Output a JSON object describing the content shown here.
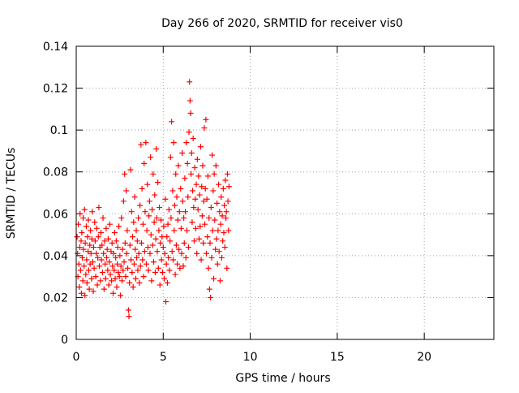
{
  "chart_data": {
    "type": "scatter",
    "title": "Day 266 of 2020, SRMTID for receiver vis0",
    "xlabel": "GPS time / hours",
    "ylabel": "SRMTID / TECUs",
    "xlim": [
      0,
      24
    ],
    "ylim": [
      0,
      0.14
    ],
    "xticks": [
      0,
      5,
      10,
      15,
      20
    ],
    "xtick_labels": [
      "0",
      "5",
      "10",
      "15",
      "20"
    ],
    "yticks": [
      0,
      0.02,
      0.04,
      0.06,
      0.08,
      0.1,
      0.12,
      0.14
    ],
    "ytick_labels": [
      "0",
      "0.02",
      "0.04",
      "0.06",
      "0.08",
      "0.1",
      "0.12",
      "0.14"
    ],
    "grid": true,
    "marker": "+",
    "series": [
      {
        "color": "#ff0000",
        "points": [
          [
            0.05,
            0.049
          ],
          [
            0.08,
            0.041
          ],
          [
            0.1,
            0.03
          ],
          [
            0.12,
            0.055
          ],
          [
            0.15,
            0.036
          ],
          [
            0.18,
            0.025
          ],
          [
            0.2,
            0.044
          ],
          [
            0.22,
            0.06
          ],
          [
            0.25,
            0.033
          ],
          [
            0.28,
            0.047
          ],
          [
            0.3,
            0.022
          ],
          [
            0.32,
            0.051
          ],
          [
            0.35,
            0.039
          ],
          [
            0.38,
            0.028
          ],
          [
            0.4,
            0.058
          ],
          [
            0.42,
            0.043
          ],
          [
            0.45,
            0.035
          ],
          [
            0.48,
            0.062
          ],
          [
            0.5,
            0.021
          ],
          [
            0.52,
            0.046
          ],
          [
            0.55,
            0.031
          ],
          [
            0.58,
            0.054
          ],
          [
            0.6,
            0.038
          ],
          [
            0.62,
            0.027
          ],
          [
            0.65,
            0.049
          ],
          [
            0.68,
            0.042
          ],
          [
            0.7,
            0.057
          ],
          [
            0.72,
            0.033
          ],
          [
            0.75,
            0.024
          ],
          [
            0.78,
            0.045
          ],
          [
            0.8,
            0.036
          ],
          [
            0.82,
            0.052
          ],
          [
            0.85,
            0.041
          ],
          [
            0.88,
            0.029
          ],
          [
            0.9,
            0.048
          ],
          [
            0.92,
            0.061
          ],
          [
            0.95,
            0.037
          ],
          [
            0.98,
            0.023
          ],
          [
            1.0,
            0.044
          ],
          [
            1.03,
            0.034
          ],
          [
            1.06,
            0.056
          ],
          [
            1.09,
            0.047
          ],
          [
            1.12,
            0.03
          ],
          [
            1.15,
            0.041
          ],
          [
            1.18,
            0.053
          ],
          [
            1.21,
            0.026
          ],
          [
            1.24,
            0.039
          ],
          [
            1.27,
            0.049
          ],
          [
            1.3,
            0.063
          ],
          [
            1.33,
            0.035
          ],
          [
            1.36,
            0.044
          ],
          [
            1.39,
            0.028
          ],
          [
            1.42,
            0.051
          ],
          [
            1.45,
            0.038
          ],
          [
            1.48,
            0.045
          ],
          [
            1.51,
            0.032
          ],
          [
            1.54,
            0.058
          ],
          [
            1.57,
            0.041
          ],
          [
            1.6,
            0.024
          ],
          [
            1.63,
            0.047
          ],
          [
            1.66,
            0.036
          ],
          [
            1.69,
            0.029
          ],
          [
            1.72,
            0.053
          ],
          [
            1.75,
            0.039
          ],
          [
            1.78,
            0.043
          ],
          [
            1.81,
            0.033
          ],
          [
            1.84,
            0.048
          ],
          [
            1.87,
            0.026
          ],
          [
            1.9,
            0.037
          ],
          [
            1.93,
            0.055
          ],
          [
            1.96,
            0.031
          ],
          [
            2.0,
            0.042
          ],
          [
            2.03,
            0.028
          ],
          [
            2.06,
            0.046
          ],
          [
            2.09,
            0.035
          ],
          [
            2.12,
            0.022
          ],
          [
            2.15,
            0.041
          ],
          [
            2.18,
            0.033
          ],
          [
            2.21,
            0.051
          ],
          [
            2.24,
            0.029
          ],
          [
            2.27,
            0.039
          ],
          [
            2.3,
            0.047
          ],
          [
            2.33,
            0.025
          ],
          [
            2.36,
            0.036
          ],
          [
            2.39,
            0.044
          ],
          [
            2.42,
            0.032
          ],
          [
            2.45,
            0.054
          ],
          [
            2.48,
            0.03
          ],
          [
            2.51,
            0.04
          ],
          [
            2.54,
            0.021
          ],
          [
            2.57,
            0.035
          ],
          [
            2.6,
            0.058
          ],
          [
            2.63,
            0.028
          ],
          [
            2.66,
            0.043
          ],
          [
            2.69,
            0.033
          ],
          [
            2.72,
            0.066
          ],
          [
            2.75,
            0.037
          ],
          [
            2.78,
            0.079
          ],
          [
            2.81,
            0.046
          ],
          [
            2.84,
            0.03
          ],
          [
            2.87,
            0.071
          ],
          [
            2.9,
            0.041
          ],
          [
            2.93,
            0.052
          ],
          [
            2.96,
            0.034
          ],
          [
            3.0,
            0.014
          ],
          [
            3.03,
            0.011
          ],
          [
            3.06,
            0.027
          ],
          [
            3.09,
            0.045
          ],
          [
            3.12,
            0.081
          ],
          [
            3.15,
            0.038
          ],
          [
            3.18,
            0.061
          ],
          [
            3.21,
            0.032
          ],
          [
            3.24,
            0.049
          ],
          [
            3.27,
            0.025
          ],
          [
            3.3,
            0.056
          ],
          [
            3.33,
            0.036
          ],
          [
            3.36,
            0.068
          ],
          [
            3.39,
            0.043
          ],
          [
            3.42,
            0.029
          ],
          [
            3.45,
            0.052
          ],
          [
            3.48,
            0.039
          ],
          [
            3.51,
            0.047
          ],
          [
            3.54,
            0.033
          ],
          [
            3.57,
            0.058
          ],
          [
            3.6,
            0.041
          ],
          [
            3.63,
            0.027
          ],
          [
            3.66,
            0.064
          ],
          [
            3.69,
            0.035
          ],
          [
            3.72,
            0.093
          ],
          [
            3.75,
            0.046
          ],
          [
            3.78,
            0.072
          ],
          [
            3.81,
            0.038
          ],
          [
            3.84,
            0.055
          ],
          [
            3.87,
            0.03
          ],
          [
            3.9,
            0.084
          ],
          [
            3.93,
            0.042
          ],
          [
            3.96,
            0.061
          ],
          [
            4.0,
            0.094
          ],
          [
            4.03,
            0.036
          ],
          [
            4.06,
            0.052
          ],
          [
            4.09,
            0.074
          ],
          [
            4.12,
            0.044
          ],
          [
            4.15,
            0.033
          ],
          [
            4.18,
            0.059
          ],
          [
            4.21,
            0.066
          ],
          [
            4.24,
            0.041
          ],
          [
            4.27,
            0.087
          ],
          [
            4.3,
            0.05
          ],
          [
            4.33,
            0.028
          ],
          [
            4.36,
            0.062
          ],
          [
            4.39,
            0.045
          ],
          [
            4.42,
            0.079
          ],
          [
            4.45,
            0.037
          ],
          [
            4.48,
            0.056
          ],
          [
            4.51,
            0.069
          ],
          [
            4.54,
            0.032
          ],
          [
            4.57,
            0.048
          ],
          [
            4.6,
            0.091
          ],
          [
            4.63,
            0.058
          ],
          [
            4.66,
            0.042
          ],
          [
            4.69,
            0.075
          ],
          [
            4.72,
            0.034
          ],
          [
            4.75,
            0.052
          ],
          [
            4.78,
            0.063
          ],
          [
            4.81,
            0.026
          ],
          [
            4.84,
            0.046
          ],
          [
            4.87,
            0.057
          ],
          [
            4.9,
            0.038
          ],
          [
            4.93,
            0.049
          ],
          [
            4.96,
            0.032
          ],
          [
            5.0,
            0.044
          ],
          [
            5.03,
            0.054
          ],
          [
            5.06,
            0.029
          ],
          [
            5.09,
            0.041
          ],
          [
            5.12,
            0.067
          ],
          [
            5.15,
            0.018
          ],
          [
            5.18,
            0.036
          ],
          [
            5.21,
            0.049
          ],
          [
            5.24,
            0.027
          ],
          [
            5.27,
            0.055
          ],
          [
            5.3,
            0.039
          ],
          [
            5.33,
            0.062
          ],
          [
            5.36,
            0.033
          ],
          [
            5.39,
            0.047
          ],
          [
            5.42,
            0.087
          ],
          [
            5.45,
            0.058
          ],
          [
            5.48,
            0.104
          ],
          [
            5.51,
            0.042
          ],
          [
            5.54,
            0.071
          ],
          [
            5.57,
            0.038
          ],
          [
            5.6,
            0.094
          ],
          [
            5.63,
            0.052
          ],
          [
            5.66,
            0.064
          ],
          [
            5.69,
            0.031
          ],
          [
            5.72,
            0.079
          ],
          [
            5.75,
            0.045
          ],
          [
            5.78,
            0.068
          ],
          [
            5.81,
            0.036
          ],
          [
            5.84,
            0.057
          ],
          [
            5.87,
            0.083
          ],
          [
            5.9,
            0.043
          ],
          [
            5.93,
            0.061
          ],
          [
            5.96,
            0.034
          ],
          [
            6.0,
            0.072
          ],
          [
            6.03,
            0.053
          ],
          [
            6.06,
            0.041
          ],
          [
            6.09,
            0.089
          ],
          [
            6.12,
            0.066
          ],
          [
            6.15,
            0.035
          ],
          [
            6.18,
            0.058
          ],
          [
            6.21,
            0.046
          ],
          [
            6.24,
            0.077
          ],
          [
            6.27,
            0.061
          ],
          [
            6.3,
            0.039
          ],
          [
            6.33,
            0.094
          ],
          [
            6.36,
            0.052
          ],
          [
            6.39,
            0.084
          ],
          [
            6.42,
            0.068
          ],
          [
            6.45,
            0.044
          ],
          [
            6.48,
            0.099
          ],
          [
            6.51,
            0.123
          ],
          [
            6.54,
            0.114
          ],
          [
            6.57,
            0.108
          ],
          [
            6.6,
            0.079
          ],
          [
            6.63,
            0.089
          ],
          [
            6.66,
            0.056
          ],
          [
            6.69,
            0.071
          ],
          [
            6.72,
            0.096
          ],
          [
            6.75,
            0.063
          ],
          [
            6.78,
            0.047
          ],
          [
            6.81,
            0.082
          ],
          [
            6.84,
            0.067
          ],
          [
            6.87,
            0.053
          ],
          [
            6.9,
            0.074
          ],
          [
            6.93,
            0.041
          ],
          [
            6.96,
            0.086
          ],
          [
            7.0,
            0.062
          ],
          [
            7.03,
            0.078
          ],
          [
            7.06,
            0.048
          ],
          [
            7.09,
            0.069
          ],
          [
            7.12,
            0.054
          ],
          [
            7.15,
            0.092
          ],
          [
            7.18,
            0.038
          ],
          [
            7.21,
            0.073
          ],
          [
            7.24,
            0.059
          ],
          [
            7.27,
            0.083
          ],
          [
            7.3,
            0.046
          ],
          [
            7.33,
            0.066
          ],
          [
            7.36,
            0.101
          ],
          [
            7.39,
            0.055
          ],
          [
            7.42,
            0.072
          ],
          [
            7.45,
            0.105
          ],
          [
            7.48,
            0.041
          ],
          [
            7.51,
            0.067
          ],
          [
            7.54,
            0.049
          ],
          [
            7.57,
            0.078
          ],
          [
            7.6,
            0.034
          ],
          [
            7.63,
            0.058
          ],
          [
            7.66,
            0.024
          ],
          [
            7.69,
            0.046
          ],
          [
            7.72,
            0.02
          ],
          [
            7.75,
            0.063
          ],
          [
            7.78,
            0.039
          ],
          [
            7.81,
            0.088
          ],
          [
            7.84,
            0.052
          ],
          [
            7.87,
            0.071
          ],
          [
            7.9,
            0.029
          ],
          [
            7.93,
            0.079
          ],
          [
            7.96,
            0.057
          ],
          [
            8.0,
            0.043
          ],
          [
            8.03,
            0.083
          ],
          [
            8.06,
            0.048
          ],
          [
            8.09,
            0.065
          ],
          [
            8.12,
            0.036
          ],
          [
            8.15,
            0.052
          ],
          [
            8.18,
            0.074
          ],
          [
            8.21,
            0.042
          ],
          [
            8.24,
            0.061
          ],
          [
            8.27,
            0.028
          ],
          [
            8.3,
            0.055
          ],
          [
            8.33,
            0.068
          ],
          [
            8.36,
            0.039
          ],
          [
            8.39,
            0.059
          ],
          [
            8.42,
            0.047
          ],
          [
            8.45,
            0.072
          ],
          [
            8.48,
            0.051
          ],
          [
            8.51,
            0.064
          ],
          [
            8.54,
            0.044
          ],
          [
            8.57,
            0.076
          ],
          [
            8.6,
            0.058
          ],
          [
            8.63,
            0.061
          ],
          [
            8.66,
            0.034
          ],
          [
            8.69,
            0.079
          ],
          [
            8.72,
            0.066
          ],
          [
            8.75,
            0.052
          ],
          [
            8.78,
            0.073
          ]
        ]
      }
    ]
  }
}
